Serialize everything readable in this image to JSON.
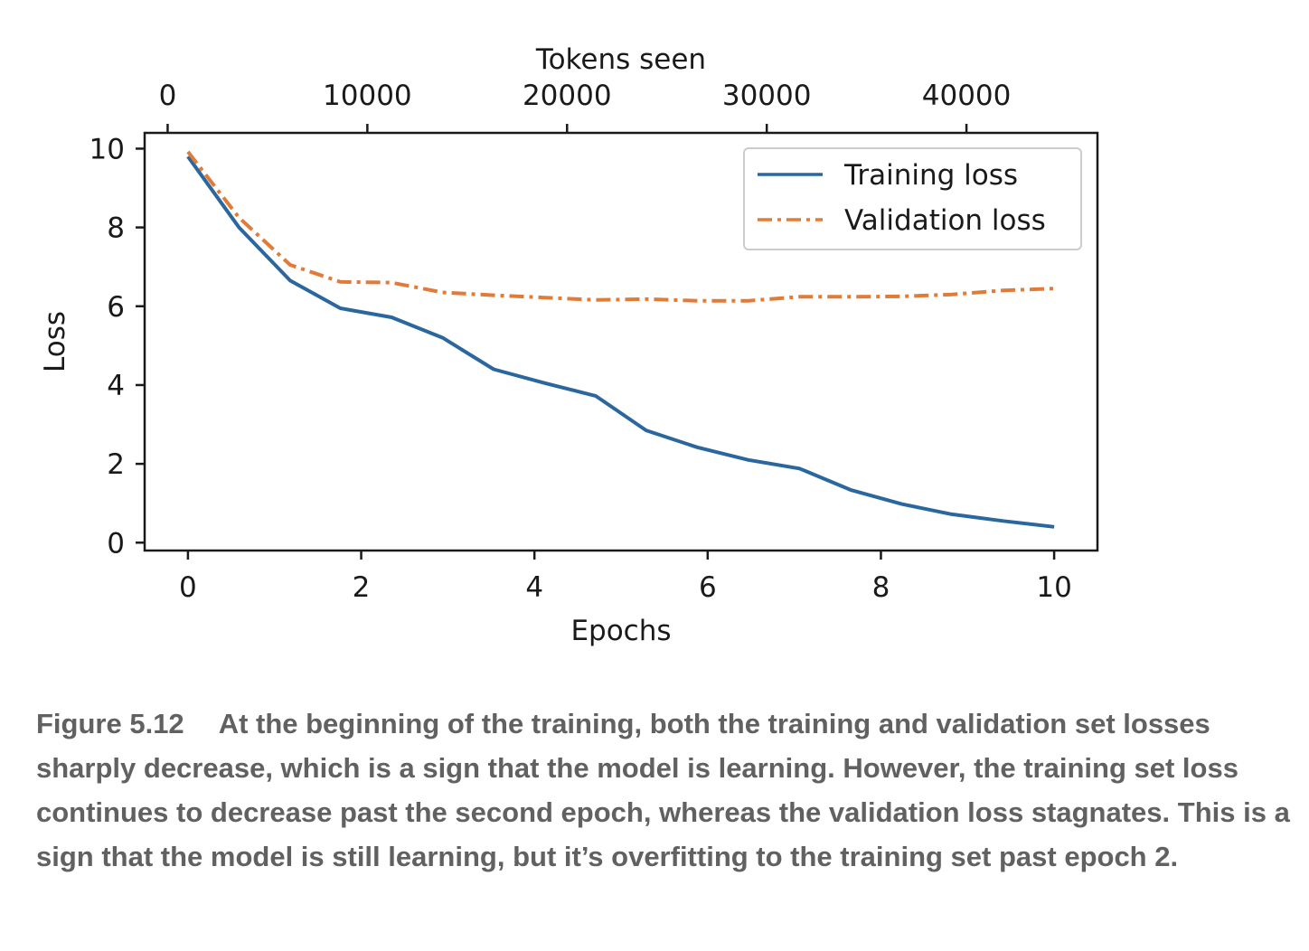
{
  "chart_data": {
    "type": "line",
    "xlabel": "Epochs",
    "ylabel": "Loss",
    "x2label": "Tokens seen",
    "xlim": [
      -0.5,
      10.5
    ],
    "ylim": [
      -0.2,
      10.4
    ],
    "x2lim": [
      -1152,
      46560
    ],
    "xticks": [
      0,
      2,
      4,
      6,
      8,
      10
    ],
    "yticks": [
      0,
      2,
      4,
      6,
      8,
      10
    ],
    "x2ticks": [
      0,
      10000,
      20000,
      30000,
      40000
    ],
    "legend_position": "top-right",
    "grid": false,
    "series": [
      {
        "name": "Training loss",
        "color": "#2b679f",
        "style": "solid",
        "x": [
          0,
          0.59,
          1.18,
          1.76,
          2.35,
          2.94,
          3.53,
          4.12,
          4.71,
          5.29,
          5.88,
          6.47,
          7.06,
          7.65,
          8.24,
          8.82,
          9.41,
          10.0
        ],
        "y": [
          9.8,
          8.0,
          6.65,
          5.95,
          5.72,
          5.2,
          4.4,
          4.05,
          3.72,
          2.85,
          2.42,
          2.1,
          1.88,
          1.34,
          0.98,
          0.72,
          0.55,
          0.4
        ]
      },
      {
        "name": "Validation loss",
        "color": "#e07b39",
        "style": "dashdot",
        "x": [
          0,
          0.59,
          1.18,
          1.76,
          2.35,
          2.94,
          3.53,
          4.12,
          4.71,
          5.29,
          5.88,
          6.47,
          7.06,
          7.65,
          8.24,
          8.82,
          9.41,
          10.0
        ],
        "y": [
          9.92,
          8.25,
          7.05,
          6.62,
          6.6,
          6.35,
          6.28,
          6.22,
          6.16,
          6.18,
          6.14,
          6.14,
          6.24,
          6.24,
          6.25,
          6.3,
          6.4,
          6.45
        ]
      }
    ]
  },
  "caption": {
    "label": "Figure 5.12",
    "text": "At the beginning of the training, both the training and validation set losses sharply decrease, which is a sign that the model is learning. However, the training set loss continues to decrease past the second epoch, whereas the validation loss stagnates. This is a sign that the model is still learning, but it’s overfitting to the training set past epoch 2."
  }
}
